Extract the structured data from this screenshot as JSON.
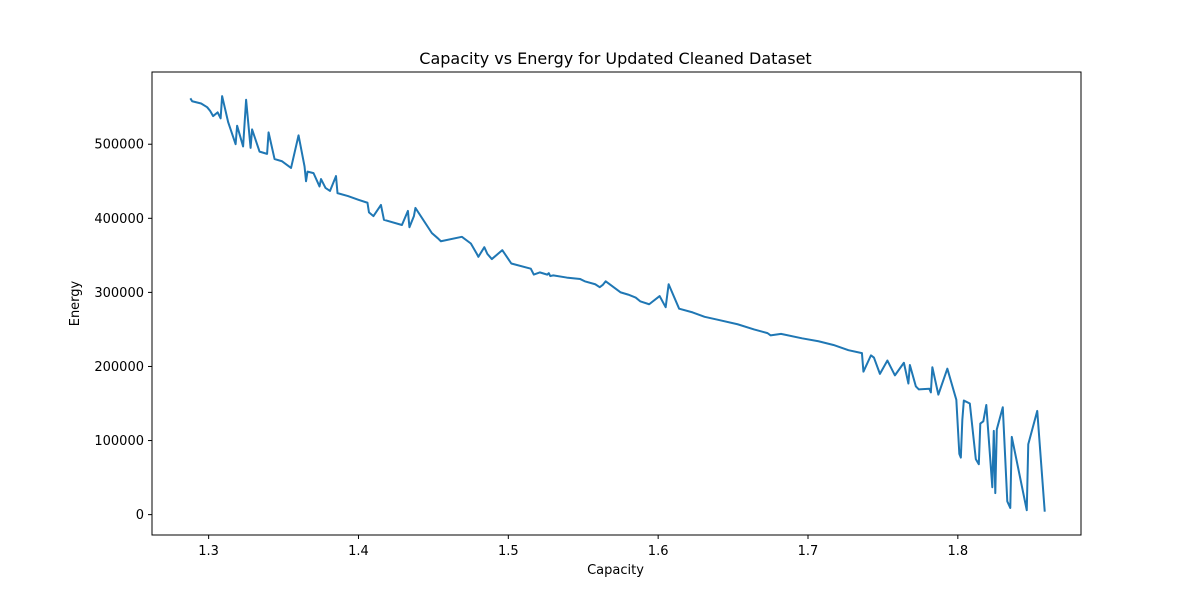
{
  "chart_data": {
    "type": "line",
    "title": "Capacity vs Energy for Updated Cleaned Dataset",
    "xlabel": "Capacity",
    "ylabel": "Energy",
    "xlim": [
      1.2622,
      1.8822
    ],
    "ylim": [
      -27500,
      597500
    ],
    "x_ticks": [
      1.3,
      1.4,
      1.5,
      1.6,
      1.7,
      1.8
    ],
    "x_tick_labels": [
      "1.3",
      "1.4",
      "1.5",
      "1.6",
      "1.7",
      "1.8"
    ],
    "y_ticks": [
      0,
      100000,
      200000,
      300000,
      400000,
      500000
    ],
    "y_tick_labels": [
      "0",
      "100000",
      "200000",
      "300000",
      "400000",
      "500000"
    ],
    "grid": false,
    "line_color": "#1f77b4",
    "series": [
      {
        "x": [
          1.2878,
          1.289,
          1.295,
          1.299,
          1.301,
          1.303,
          1.306,
          1.308,
          1.309,
          1.313,
          1.318,
          1.319,
          1.323,
          1.325,
          1.328,
          1.329,
          1.334,
          1.339,
          1.34,
          1.344,
          1.349,
          1.355,
          1.36,
          1.364,
          1.365,
          1.366,
          1.37,
          1.374,
          1.375,
          1.378,
          1.381,
          1.385,
          1.386,
          1.393,
          1.4,
          1.406,
          1.407,
          1.41,
          1.415,
          1.417,
          1.429,
          1.433,
          1.434,
          1.437,
          1.438,
          1.449,
          1.453,
          1.455,
          1.469,
          1.475,
          1.479,
          1.48,
          1.484,
          1.486,
          1.489,
          1.496,
          1.502,
          1.515,
          1.517,
          1.521,
          1.526,
          1.527,
          1.528,
          1.53,
          1.539,
          1.548,
          1.551,
          1.558,
          1.561,
          1.563,
          1.565,
          1.575,
          1.58,
          1.585,
          1.588,
          1.594,
          1.601,
          1.605,
          1.607,
          1.614,
          1.623,
          1.631,
          1.64,
          1.653,
          1.664,
          1.673,
          1.675,
          1.682,
          1.696,
          1.707,
          1.717,
          1.727,
          1.736,
          1.737,
          1.742,
          1.744,
          1.748,
          1.753,
          1.758,
          1.764,
          1.767,
          1.768,
          1.772,
          1.774,
          1.781,
          1.782,
          1.783,
          1.787,
          1.793,
          1.799,
          1.801,
          1.802,
          1.803,
          1.804,
          1.808,
          1.812,
          1.814,
          1.815,
          1.817,
          1.819,
          1.823,
          1.824,
          1.825,
          1.826,
          1.83,
          1.833,
          1.835,
          1.836,
          1.846,
          1.847,
          1.853,
          1.858
        ],
        "y": [
          562000,
          558000,
          555000,
          550000,
          545000,
          538000,
          543000,
          535000,
          565000,
          530000,
          500000,
          525000,
          497000,
          560000,
          495000,
          520000,
          490000,
          487000,
          516000,
          480000,
          477000,
          468000,
          512000,
          470000,
          450000,
          463000,
          461000,
          443000,
          453000,
          441000,
          437000,
          457000,
          434000,
          430000,
          425000,
          421000,
          408000,
          403000,
          418000,
          398000,
          391000,
          410000,
          388000,
          403000,
          414000,
          380000,
          373000,
          369000,
          375000,
          366000,
          352000,
          348000,
          361000,
          352000,
          345000,
          357000,
          339000,
          332000,
          324000,
          327000,
          324000,
          326000,
          322000,
          323000,
          320000,
          318000,
          315000,
          311000,
          307000,
          310000,
          315000,
          300000,
          297000,
          293000,
          288000,
          284000,
          295000,
          280000,
          311000,
          278000,
          273000,
          267000,
          263000,
          257000,
          250000,
          245000,
          242000,
          244000,
          238000,
          234000,
          229000,
          222000,
          218000,
          193000,
          215000,
          212000,
          190000,
          208000,
          188000,
          205000,
          177000,
          202000,
          173000,
          169000,
          170000,
          165000,
          199000,
          162000,
          197000,
          155000,
          82000,
          77000,
          128000,
          154000,
          150000,
          75000,
          68000,
          123000,
          126000,
          148000,
          37000,
          113000,
          29000,
          115000,
          145000,
          18000,
          9000,
          105000,
          6000,
          95000,
          140000,
          4000
        ]
      }
    ]
  }
}
